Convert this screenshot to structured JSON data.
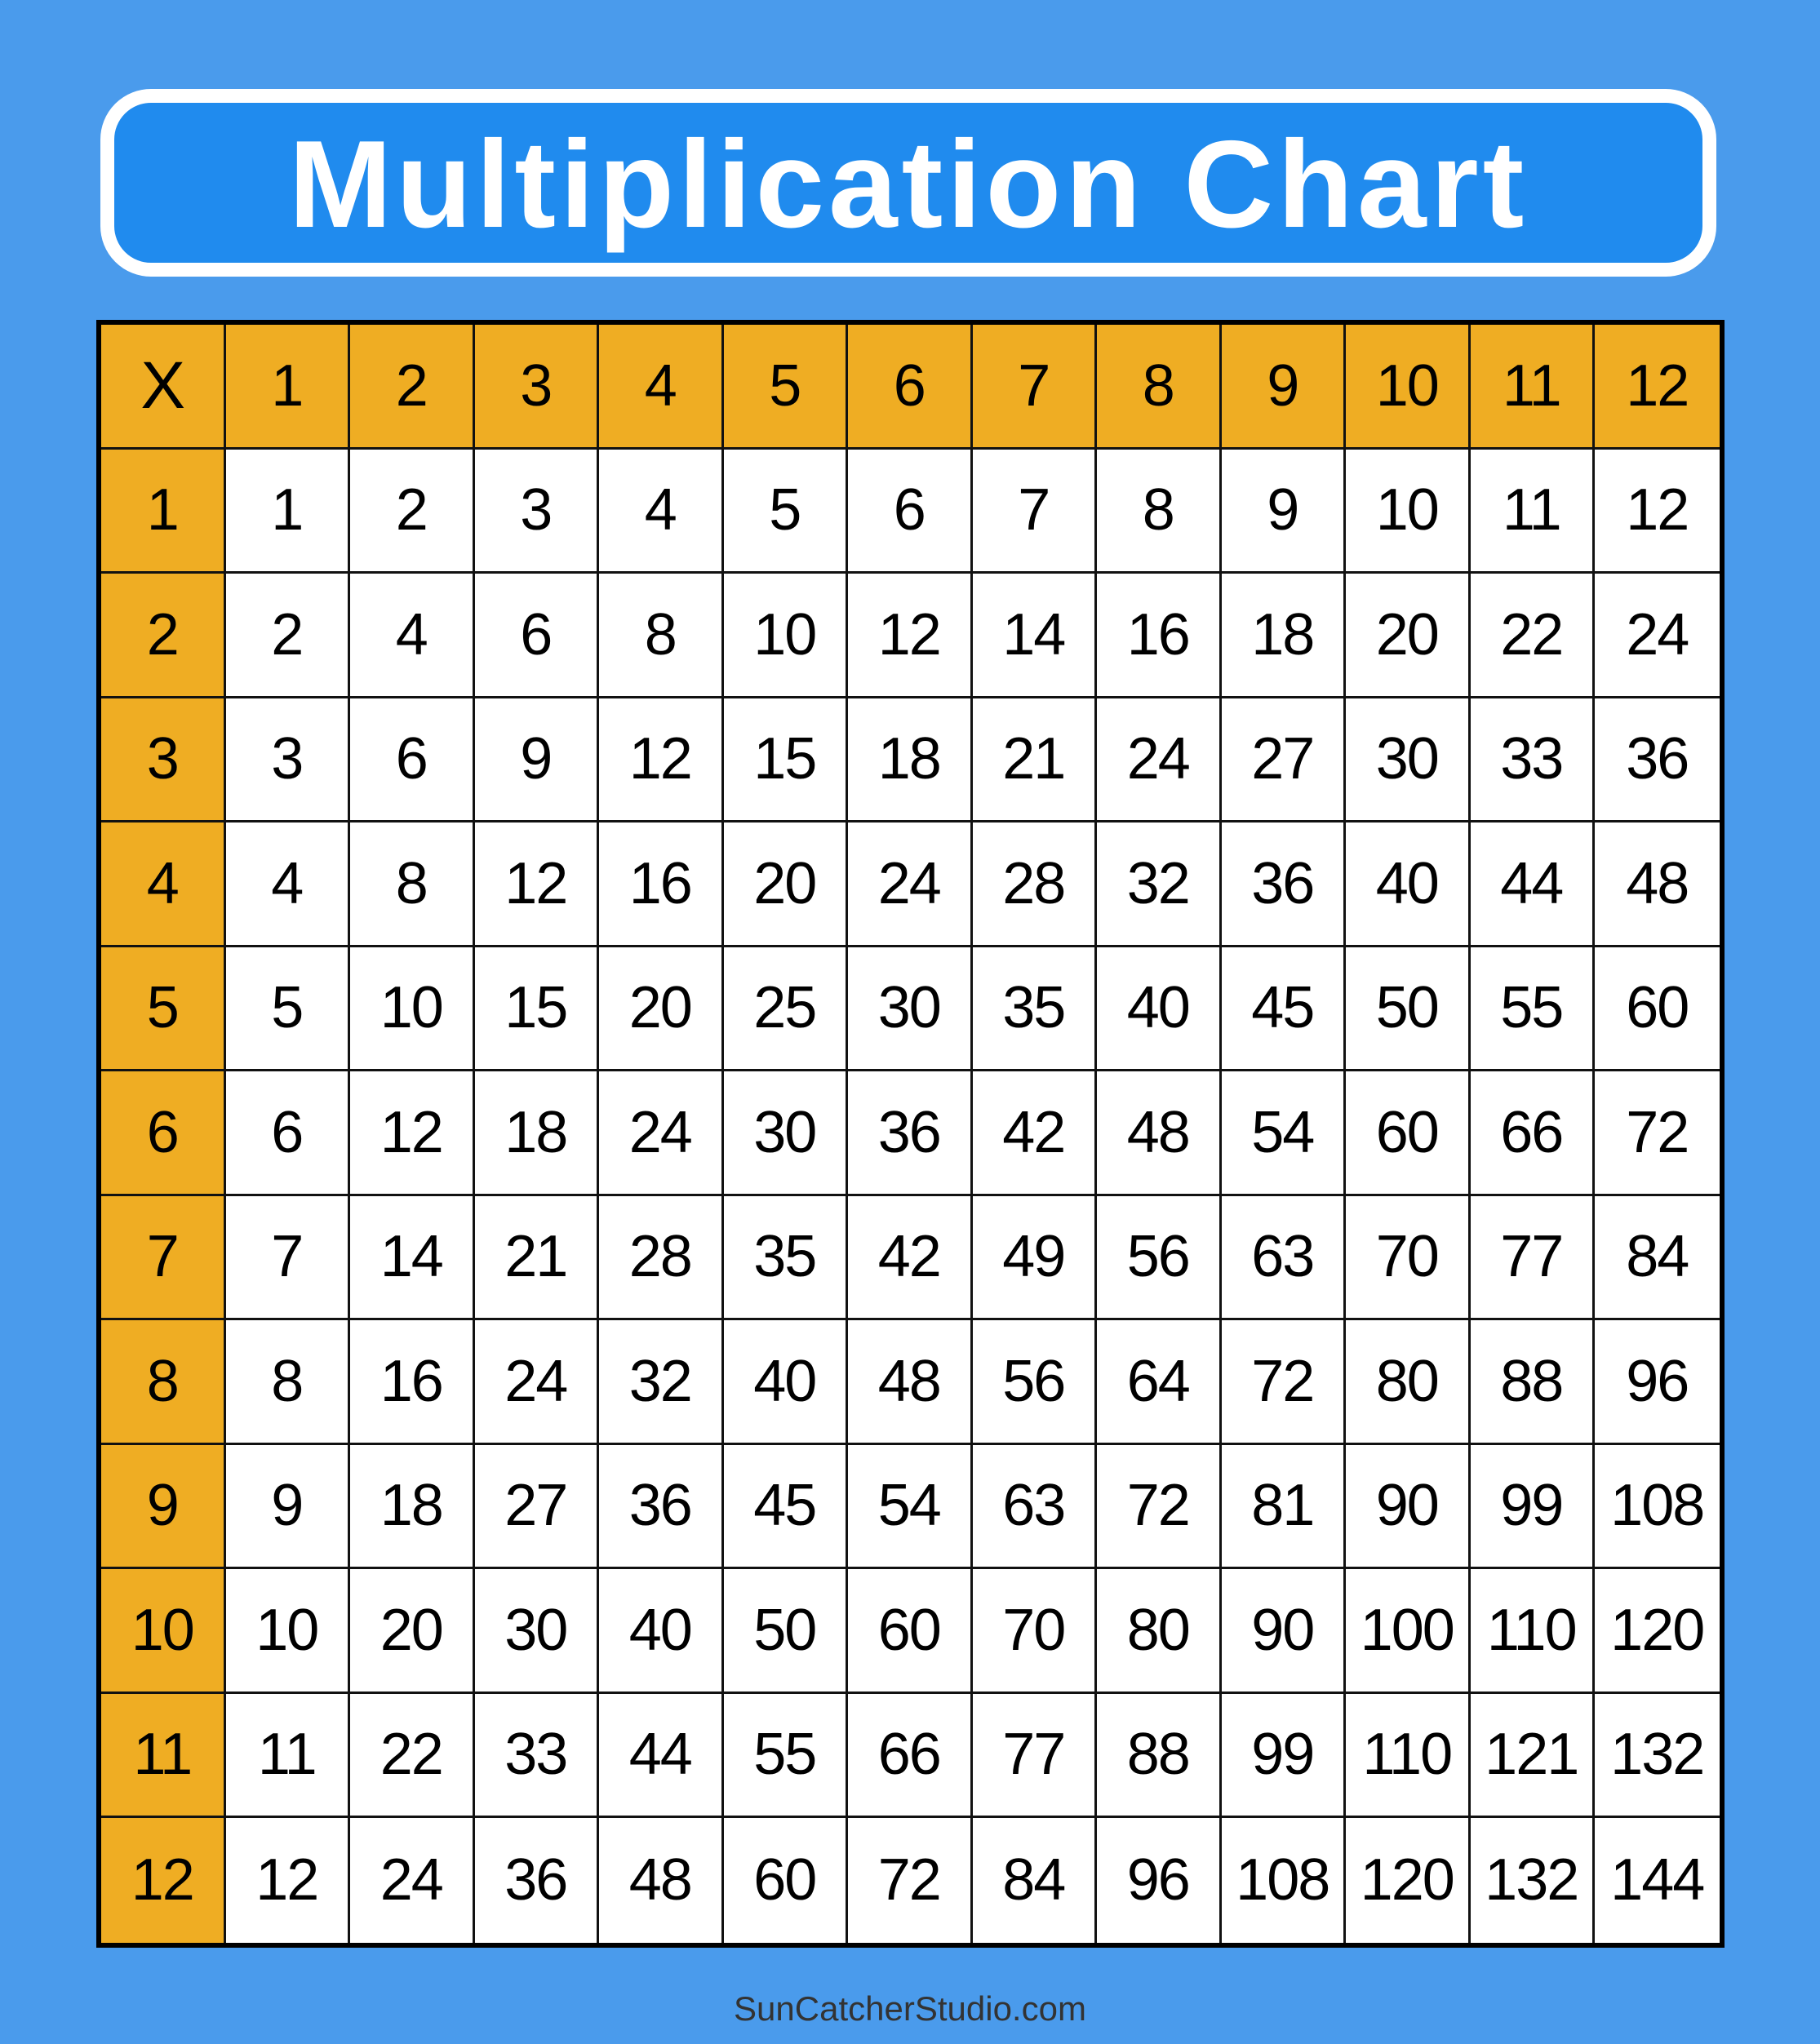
{
  "title": "Multiplication Chart",
  "corner_label": "X",
  "column_headers": [
    "1",
    "2",
    "3",
    "4",
    "5",
    "6",
    "7",
    "8",
    "9",
    "10",
    "11",
    "12"
  ],
  "row_headers": [
    "1",
    "2",
    "3",
    "4",
    "5",
    "6",
    "7",
    "8",
    "9",
    "10",
    "11",
    "12"
  ],
  "rows": [
    [
      "1",
      "2",
      "3",
      "4",
      "5",
      "6",
      "7",
      "8",
      "9",
      "10",
      "11",
      "12"
    ],
    [
      "2",
      "4",
      "6",
      "8",
      "10",
      "12",
      "14",
      "16",
      "18",
      "20",
      "22",
      "24"
    ],
    [
      "3",
      "6",
      "9",
      "12",
      "15",
      "18",
      "21",
      "24",
      "27",
      "30",
      "33",
      "36"
    ],
    [
      "4",
      "8",
      "12",
      "16",
      "20",
      "24",
      "28",
      "32",
      "36",
      "40",
      "44",
      "48"
    ],
    [
      "5",
      "10",
      "15",
      "20",
      "25",
      "30",
      "35",
      "40",
      "45",
      "50",
      "55",
      "60"
    ],
    [
      "6",
      "12",
      "18",
      "24",
      "30",
      "36",
      "42",
      "48",
      "54",
      "60",
      "66",
      "72"
    ],
    [
      "7",
      "14",
      "21",
      "28",
      "35",
      "42",
      "49",
      "56",
      "63",
      "70",
      "77",
      "84"
    ],
    [
      "8",
      "16",
      "24",
      "32",
      "40",
      "48",
      "56",
      "64",
      "72",
      "80",
      "88",
      "96"
    ],
    [
      "9",
      "18",
      "27",
      "36",
      "45",
      "54",
      "63",
      "72",
      "81",
      "90",
      "99",
      "108"
    ],
    [
      "10",
      "20",
      "30",
      "40",
      "50",
      "60",
      "70",
      "80",
      "90",
      "100",
      "110",
      "120"
    ],
    [
      "11",
      "22",
      "33",
      "44",
      "55",
      "66",
      "77",
      "88",
      "99",
      "110",
      "121",
      "132"
    ],
    [
      "12",
      "24",
      "36",
      "48",
      "60",
      "72",
      "84",
      "96",
      "108",
      "120",
      "132",
      "144"
    ]
  ],
  "footer": "SunCatcherStudio.com",
  "colors": {
    "background": "#4a9bec",
    "title_box": "#208bee",
    "header_cells": "#efad23",
    "cells": "#ffffff",
    "border": "#000000"
  }
}
